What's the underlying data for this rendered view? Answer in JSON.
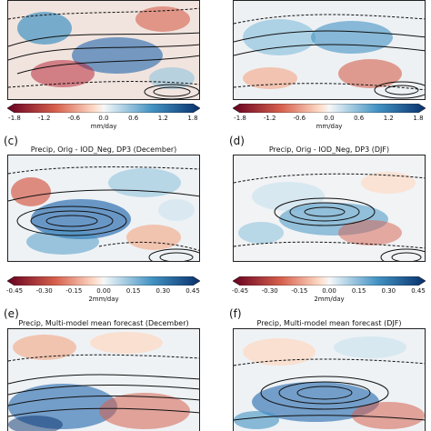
{
  "panels": {
    "c": {
      "letter": "(c)",
      "title": "Precip, Orig - IOD_Neg, DP3 (December)"
    },
    "d": {
      "letter": "(d)",
      "title": "Precip, Orig - IOD_Neg, DP3 (DJF)"
    },
    "e": {
      "letter": "(e)",
      "title": "Precip, Multi-model mean forecast (December)"
    },
    "f": {
      "letter": "(f)",
      "title": "Precip, Multi-model mean forecast (DJF)"
    }
  },
  "colorbar_top": {
    "ticks": [
      "-1.8",
      "-1.2",
      "-0.6",
      "0.0",
      "0.6",
      "1.2",
      "1.8"
    ],
    "unit": "mm/day"
  },
  "colorbar_mid": {
    "ticks": [
      "-0.45",
      "-0.30",
      "-0.15",
      "0.00",
      "0.15",
      "0.30",
      "0.45"
    ],
    "unit": "2mm/day"
  },
  "colors": {
    "dry_strong": "#67001f",
    "dry": "#d6604d",
    "dry_light": "#f4c7b0",
    "neutral": "#f7f7f7",
    "wet_light": "#b8d6ea",
    "wet": "#4393c3",
    "wet_strong": "#08306b"
  }
}
